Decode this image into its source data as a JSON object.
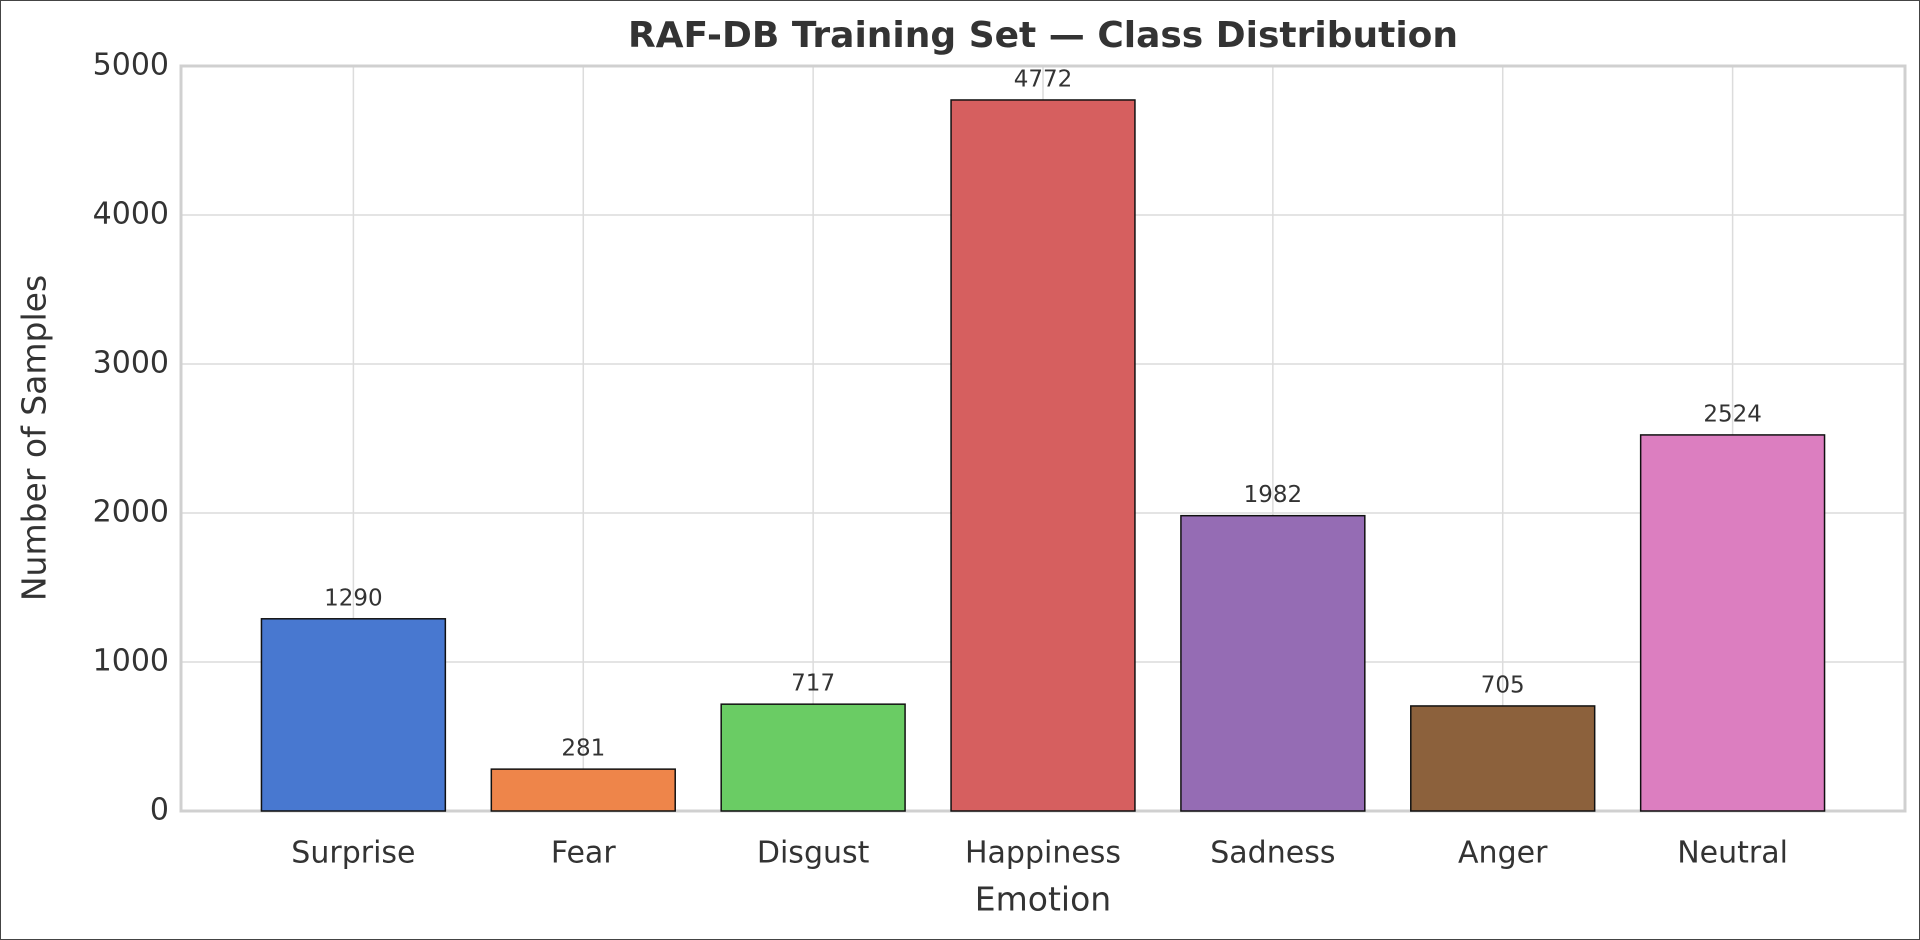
{
  "chart_data": {
    "type": "bar",
    "title": "RAF-DB Training Set — Class Distribution",
    "x_label": "Emotion",
    "y_label": "Number of Samples",
    "categories": [
      "Surprise",
      "Fear",
      "Disgust",
      "Happiness",
      "Sadness",
      "Anger",
      "Neutral"
    ],
    "values": [
      1290,
      281,
      717,
      4772,
      1982,
      705,
      2524
    ],
    "colors": [
      "#4878d0",
      "#ee854a",
      "#6acc64",
      "#d65f5f",
      "#956cb4",
      "#8c613c",
      "#dc7ec0"
    ],
    "ylim": [
      0,
      5000
    ],
    "yticks": [
      0,
      1000,
      2000,
      3000,
      4000,
      5000
    ],
    "grid": true
  }
}
